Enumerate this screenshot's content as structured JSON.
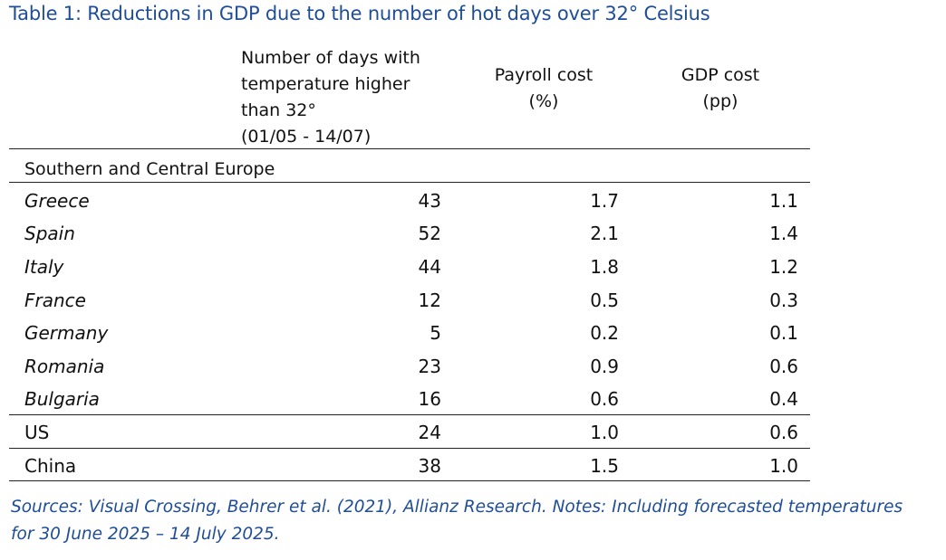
{
  "table": {
    "title": "Table 1: Reductions in GDP due to the number of hot days over 32° Celsius",
    "headers": {
      "days": [
        "Number of days with",
        "temperature higher",
        "than 32°",
        "(01/05 - 14/07)"
      ],
      "payroll": [
        "Payroll cost",
        "(%)"
      ],
      "gdp": [
        "GDP cost",
        "(pp)"
      ]
    },
    "section_label": "Southern and Central Europe",
    "rows": [
      {
        "country": "Greece",
        "days": "43",
        "payroll": "1.7",
        "gdp": "1.1",
        "italic": true
      },
      {
        "country": "Spain",
        "days": "52",
        "payroll": "2.1",
        "gdp": "1.4",
        "italic": true
      },
      {
        "country": "Italy",
        "days": "44",
        "payroll": "1.8",
        "gdp": "1.2",
        "italic": true
      },
      {
        "country": "France",
        "days": "12",
        "payroll": "0.5",
        "gdp": "0.3",
        "italic": true
      },
      {
        "country": "Germany",
        "days": "5",
        "payroll": "0.2",
        "gdp": "0.1",
        "italic": true
      },
      {
        "country": "Romania",
        "days": "23",
        "payroll": "0.9",
        "gdp": "0.6",
        "italic": true
      },
      {
        "country": "Bulgaria",
        "days": "16",
        "payroll": "0.6",
        "gdp": "0.4",
        "italic": true
      },
      {
        "country": "US",
        "days": "24",
        "payroll": "1.0",
        "gdp": "0.6",
        "italic": false
      },
      {
        "country": "China",
        "days": "38",
        "payroll": "1.5",
        "gdp": "1.0",
        "italic": false
      }
    ],
    "note": [
      "Sources: Visual Crossing, Behrer et al. (2021), Allianz Research. Notes: Including forecasted temperatures",
      "for 30 June 2025 – 14 July 2025."
    ],
    "colors": {
      "title": "#1f4e96",
      "note": "#1f4e96",
      "text": "#111111",
      "rule": "#222222"
    }
  }
}
